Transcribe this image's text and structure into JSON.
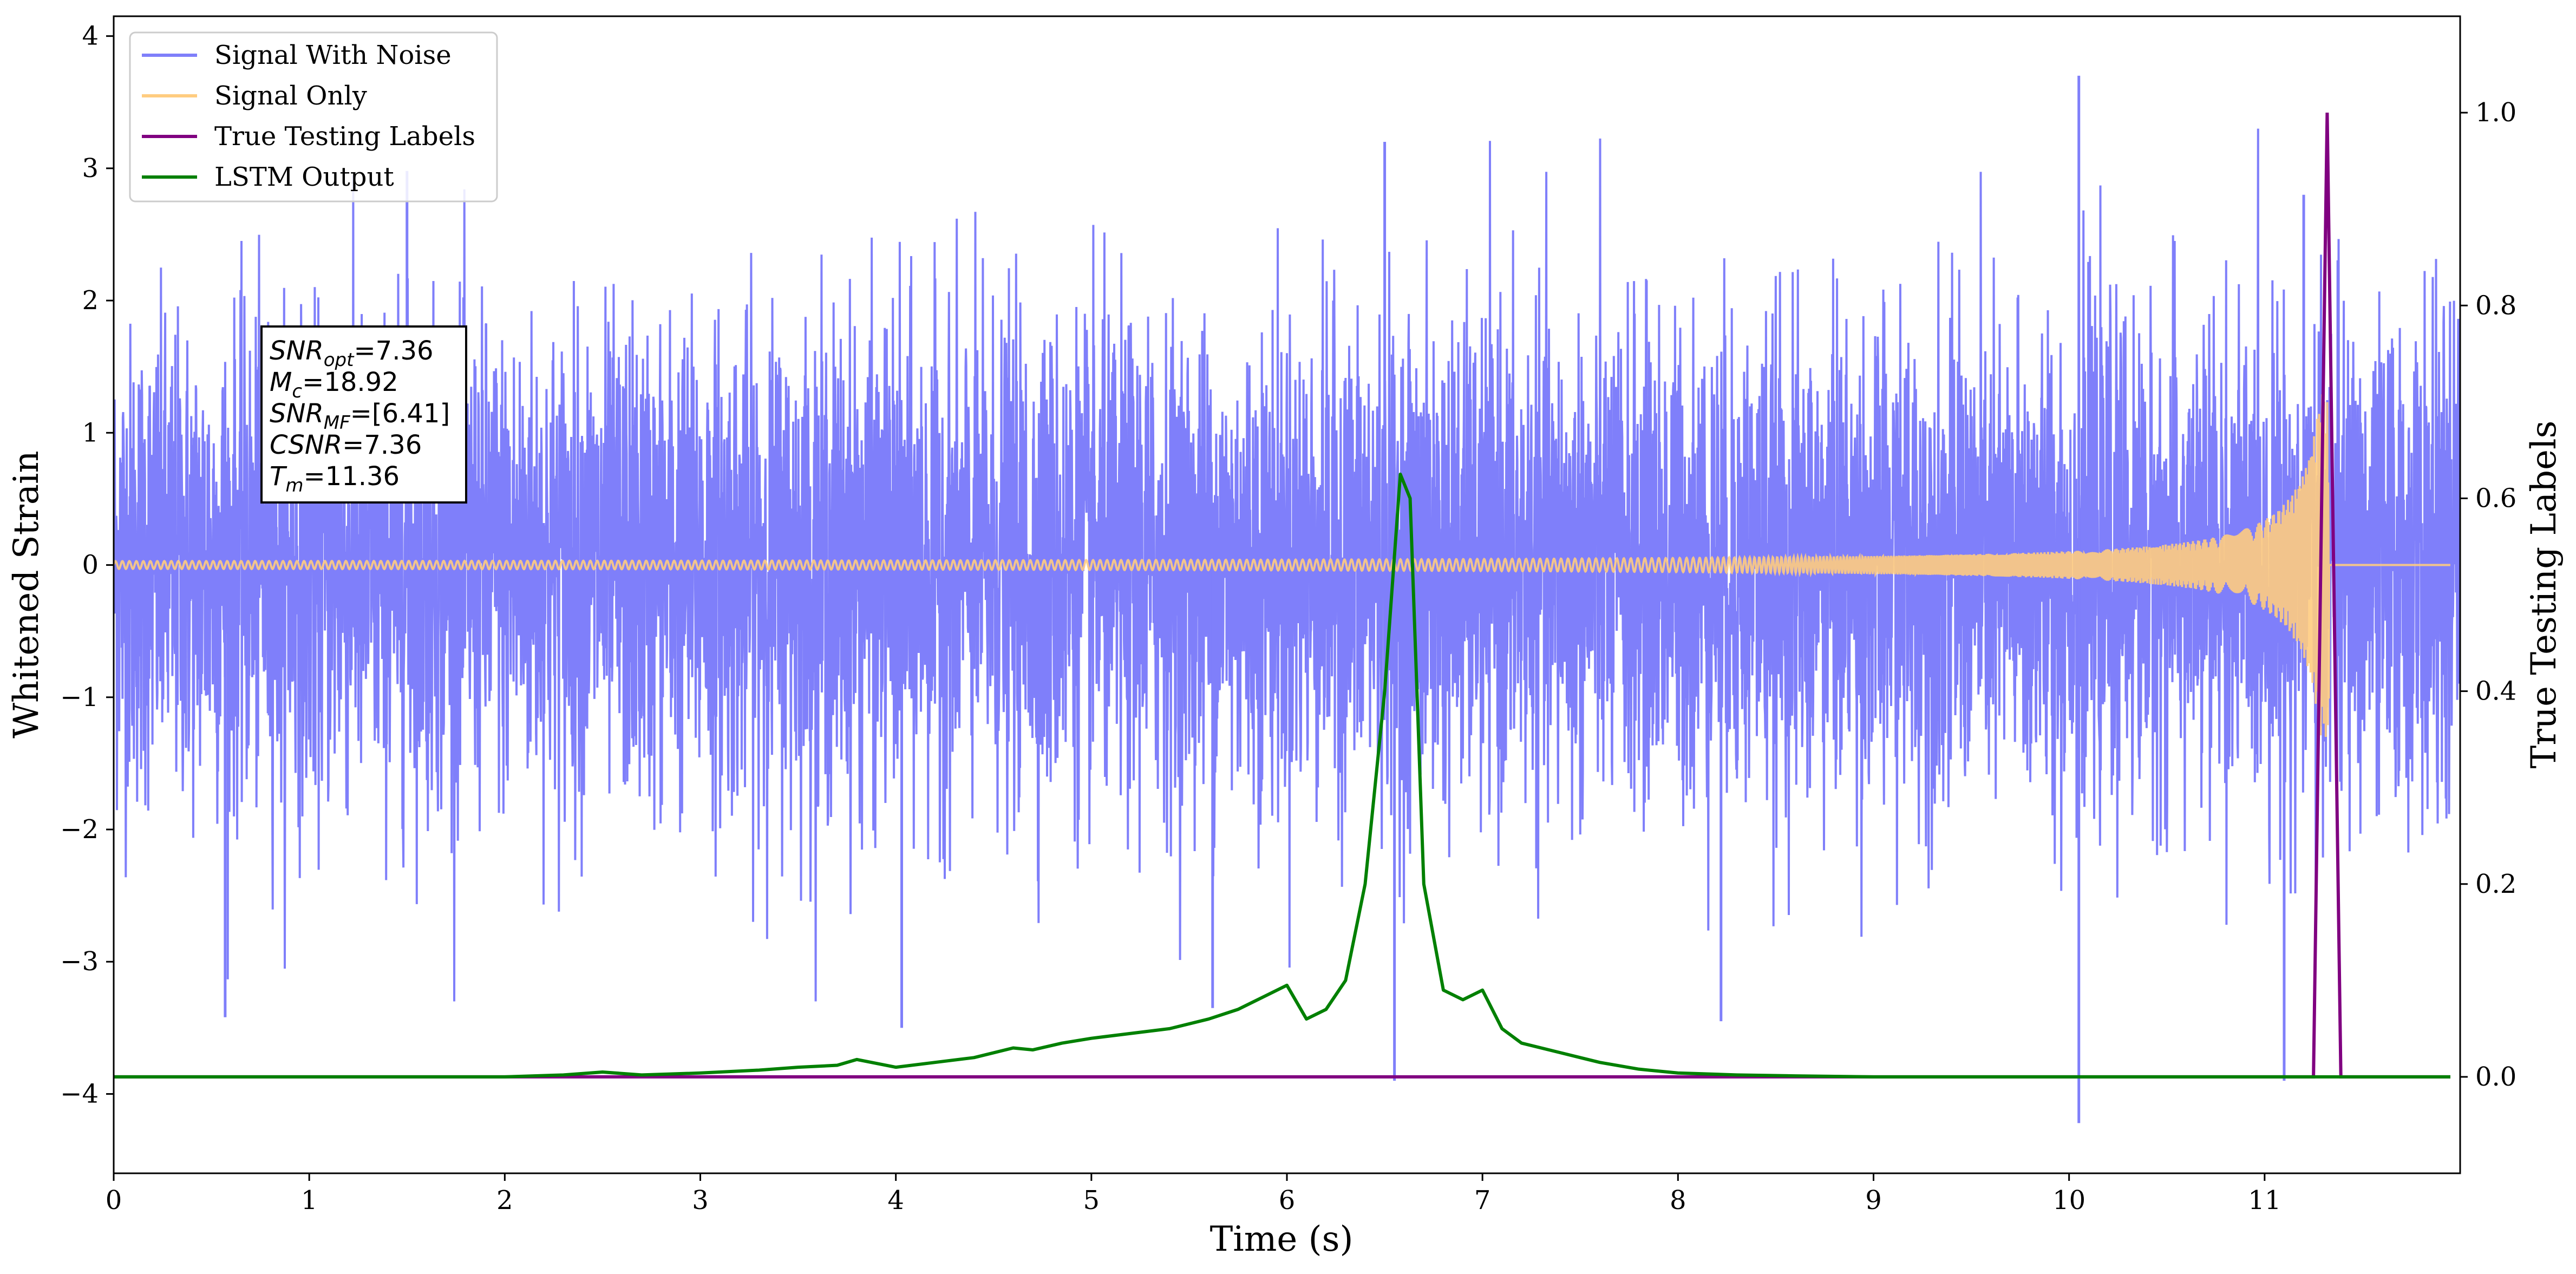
{
  "chart_data": {
    "type": "line",
    "xlabel": "Time (s)",
    "ylabel": "Whitened Strain",
    "y2label": "True Testing Labels",
    "xlim": [
      0,
      12
    ],
    "ylim": [
      -4.6,
      4.15
    ],
    "y2lim": [
      -0.1,
      1.1
    ],
    "xticks": [
      0,
      1,
      2,
      3,
      4,
      5,
      6,
      7,
      8,
      9,
      10,
      11
    ],
    "yticks": [
      -4,
      -3,
      -2,
      -1,
      0,
      1,
      2,
      3,
      4
    ],
    "y2ticks": [
      0.0,
      0.2,
      0.4,
      0.6,
      0.8,
      1.0
    ],
    "xtick_labels": [
      "0",
      "1",
      "2",
      "3",
      "4",
      "5",
      "6",
      "7",
      "8",
      "9",
      "10",
      "11"
    ],
    "ytick_labels": [
      "−4",
      "−3",
      "−2",
      "−1",
      "0",
      "1",
      "2",
      "3",
      "4"
    ],
    "y2tick_labels": [
      "0.0",
      "0.2",
      "0.4",
      "0.6",
      "0.8",
      "1.0"
    ],
    "grid": false,
    "legend_position": "upper-left",
    "series": [
      {
        "name": "Signal With Noise",
        "axis": "left",
        "color": "#7f7ffa",
        "kind": "dense noise, approx. std 0.9, range about -4.2 to 3.7",
        "spikes": [
          [
            0.57,
            -3.42
          ],
          [
            1.5,
            2.98
          ],
          [
            4.03,
            -3.5
          ],
          [
            5.62,
            -3.35
          ],
          [
            6.55,
            -3.9
          ],
          [
            6.5,
            3.2
          ],
          [
            8.22,
            -3.45
          ],
          [
            10.05,
            -4.22
          ],
          [
            10.05,
            3.7
          ],
          [
            11.1,
            -3.9
          ],
          [
            11.2,
            2.8
          ]
        ]
      },
      {
        "name": "Signal Only",
        "axis": "left",
        "color": "#ffcc80",
        "kind": "chirp, amplitude ~0.02 until 9 s rising to ~1.3 at 11.33 s, zero afterwards"
      },
      {
        "name": "True Testing Labels",
        "axis": "right",
        "color": "#800080",
        "x": [
          0,
          11.25,
          11.32,
          11.39,
          11.95
        ],
        "y": [
          0,
          0,
          1.0,
          0,
          0
        ]
      },
      {
        "name": "LSTM Output",
        "axis": "right",
        "color": "#008000",
        "x": [
          0,
          0.5,
          1.0,
          1.5,
          2.0,
          2.3,
          2.5,
          2.7,
          3.0,
          3.3,
          3.5,
          3.7,
          3.8,
          4.0,
          4.2,
          4.4,
          4.6,
          4.7,
          4.85,
          5.0,
          5.2,
          5.4,
          5.6,
          5.75,
          5.9,
          6.0,
          6.1,
          6.2,
          6.3,
          6.4,
          6.5,
          6.58,
          6.63,
          6.7,
          6.8,
          6.9,
          7.0,
          7.1,
          7.2,
          7.4,
          7.6,
          7.8,
          8.0,
          8.3,
          8.6,
          9.0,
          10.0,
          11.0,
          11.95
        ],
        "y": [
          0,
          0,
          0,
          0,
          0,
          0.002,
          0.005,
          0.002,
          0.004,
          0.007,
          0.01,
          0.012,
          0.018,
          0.01,
          0.015,
          0.02,
          0.03,
          0.028,
          0.035,
          0.04,
          0.045,
          0.05,
          0.06,
          0.07,
          0.085,
          0.095,
          0.06,
          0.07,
          0.1,
          0.2,
          0.4,
          0.625,
          0.6,
          0.2,
          0.09,
          0.08,
          0.09,
          0.05,
          0.035,
          0.025,
          0.015,
          0.008,
          0.004,
          0.002,
          0.001,
          0,
          0,
          0,
          0
        ]
      }
    ],
    "annotation": {
      "lines": [
        {
          "label": "SNR",
          "sub": "opt",
          "value": "=7.36"
        },
        {
          "label": "M",
          "sub": "c",
          "value": "=18.92"
        },
        {
          "label": "SNR",
          "sub": "MF",
          "value": "=[6.41]"
        },
        {
          "label": "CSNR",
          "sub": "",
          "value": "=7.36"
        },
        {
          "label": "T",
          "sub": "m",
          "value": "=11.36"
        }
      ]
    }
  }
}
